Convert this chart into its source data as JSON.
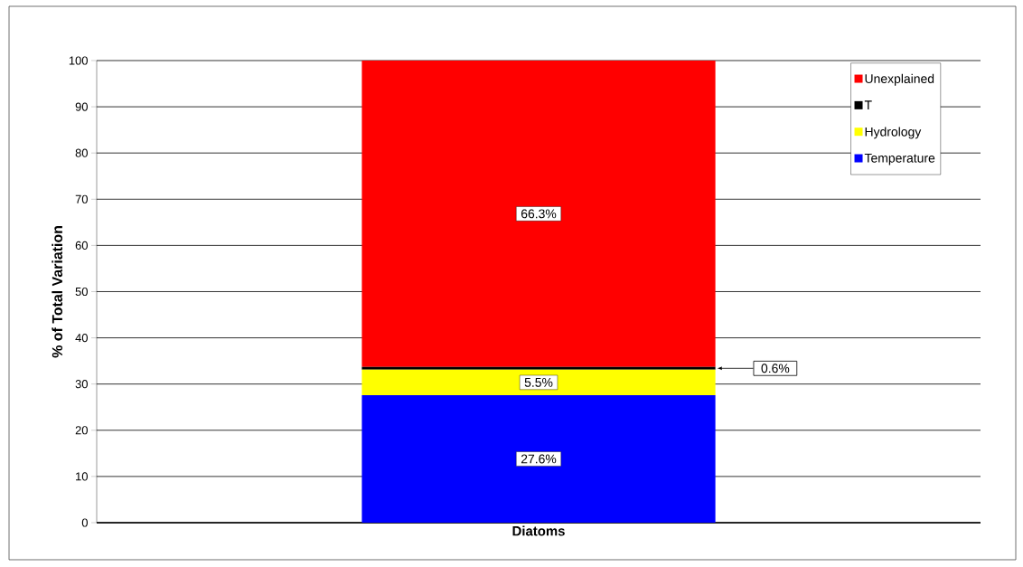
{
  "chart_data": {
    "type": "bar",
    "stacked": true,
    "categories": [
      "Diatoms"
    ],
    "ylabel": "% of Total Variation",
    "ylim": [
      0,
      100
    ],
    "yticks": [
      0,
      10,
      20,
      30,
      40,
      50,
      60,
      70,
      80,
      90,
      100
    ],
    "grid": "y",
    "legend": "top right",
    "series": [
      {
        "name": "Temperature",
        "color": "#0000ff",
        "values": [
          27.6
        ],
        "value_labels": [
          "27.6%"
        ]
      },
      {
        "name": "Hydrology",
        "color": "#ffff00",
        "values": [
          5.5
        ],
        "value_labels": [
          "5.5%"
        ]
      },
      {
        "name": "T",
        "color": "#000000",
        "values": [
          0.6
        ],
        "value_labels": [
          "0.6%"
        ]
      },
      {
        "name": "Unexplained",
        "color": "#ff0000",
        "values": [
          66.3
        ],
        "value_labels": [
          "66.3%"
        ]
      }
    ]
  }
}
